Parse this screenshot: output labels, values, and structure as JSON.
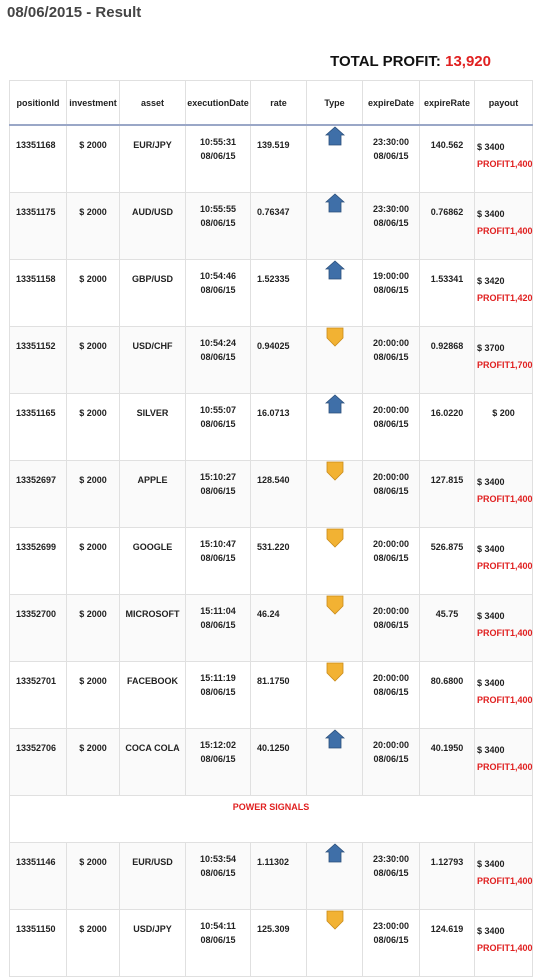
{
  "page": {
    "title": "08/06/2015 - Result",
    "total_label": "TOTAL PROFIT:",
    "total_value": "13,920"
  },
  "table": {
    "headers": [
      "positionId",
      "investment",
      "asset",
      "executionDate",
      "rate",
      "Type",
      "expireDate",
      "expireRate",
      "payout"
    ],
    "rows": [
      {
        "id": "13351168",
        "inv": "$ 2000",
        "asset": "EUR/JPY",
        "exec_time": "10:55:31",
        "exec_date": "08/06/15",
        "rate": "139.519",
        "type": "up",
        "exp_time": "23:30:00",
        "exp_date": "08/06/15",
        "exp_rate": "140.562",
        "payout": "$ 3400",
        "profit": "PROFIT1,400"
      },
      {
        "id": "13351175",
        "inv": "$ 2000",
        "asset": "AUD/USD",
        "exec_time": "10:55:55",
        "exec_date": "08/06/15",
        "rate": "0.76347",
        "type": "up",
        "exp_time": "23:30:00",
        "exp_date": "08/06/15",
        "exp_rate": "0.76862",
        "payout": "$ 3400",
        "profit": "PROFIT1,400"
      },
      {
        "id": "13351158",
        "inv": "$ 2000",
        "asset": "GBP/USD",
        "exec_time": "10:54:46",
        "exec_date": "08/06/15",
        "rate": "1.52335",
        "type": "up",
        "exp_time": "19:00:00",
        "exp_date": "08/06/15",
        "exp_rate": "1.53341",
        "payout": "$ 3420",
        "profit": "PROFIT1,420"
      },
      {
        "id": "13351152",
        "inv": "$ 2000",
        "asset": "USD/CHF",
        "exec_time": "10:54:24",
        "exec_date": "08/06/15",
        "rate": "0.94025",
        "type": "down",
        "exp_time": "20:00:00",
        "exp_date": "08/06/15",
        "exp_rate": "0.92868",
        "payout": "$ 3700",
        "profit": "PROFIT1,700"
      },
      {
        "id": "13351165",
        "inv": "$ 2000",
        "asset": "SILVER",
        "exec_time": "10:55:07",
        "exec_date": "08/06/15",
        "rate": "16.0713",
        "type": "up",
        "exp_time": "20:00:00",
        "exp_date": "08/06/15",
        "exp_rate": "16.0220",
        "payout": "$ 200",
        "profit": ""
      },
      {
        "id": "13352697",
        "inv": "$ 2000",
        "asset": "APPLE",
        "exec_time": "15:10:27",
        "exec_date": "08/06/15",
        "rate": "128.540",
        "type": "down",
        "exp_time": "20:00:00",
        "exp_date": "08/06/15",
        "exp_rate": "127.815",
        "payout": "$ 3400",
        "profit": "PROFIT1,400"
      },
      {
        "id": "13352699",
        "inv": "$ 2000",
        "asset": "GOOGLE",
        "exec_time": "15:10:47",
        "exec_date": "08/06/15",
        "rate": "531.220",
        "type": "down",
        "exp_time": "20:00:00",
        "exp_date": "08/06/15",
        "exp_rate": "526.875",
        "payout": "$ 3400",
        "profit": "PROFIT1,400"
      },
      {
        "id": "13352700",
        "inv": "$ 2000",
        "asset": "MICROSOFT",
        "exec_time": "15:11:04",
        "exec_date": "08/06/15",
        "rate": "46.24",
        "type": "down",
        "exp_time": "20:00:00",
        "exp_date": "08/06/15",
        "exp_rate": "45.75",
        "payout": "$ 3400",
        "profit": "PROFIT1,400"
      },
      {
        "id": "13352701",
        "inv": "$ 2000",
        "asset": "FACEBOOK",
        "exec_time": "15:11:19",
        "exec_date": "08/06/15",
        "rate": "81.1750",
        "type": "down",
        "exp_time": "20:00:00",
        "exp_date": "08/06/15",
        "exp_rate": "80.6800",
        "payout": "$ 3400",
        "profit": "PROFIT1,400"
      },
      {
        "id": "13352706",
        "inv": "$ 2000",
        "asset": "COCA COLA",
        "exec_time": "15:12:02",
        "exec_date": "08/06/15",
        "rate": "40.1250",
        "type": "up",
        "exp_time": "20:00:00",
        "exp_date": "08/06/15",
        "exp_rate": "40.1950",
        "payout": "$ 3400",
        "profit": "PROFIT1,400"
      }
    ],
    "section_label": "POWER SIGNALS",
    "rows2": [
      {
        "id": "13351146",
        "inv": "$ 2000",
        "asset": "EUR/USD",
        "exec_time": "10:53:54",
        "exec_date": "08/06/15",
        "rate": "1.11302",
        "type": "up",
        "exp_time": "23:30:00",
        "exp_date": "08/06/15",
        "exp_rate": "1.12793",
        "payout": "$ 3400",
        "profit": "PROFIT1,400"
      },
      {
        "id": "13351150",
        "inv": "$ 2000",
        "asset": "USD/JPY",
        "exec_time": "10:54:11",
        "exec_date": "08/06/15",
        "rate": "125.309",
        "type": "down",
        "exp_time": "23:00:00",
        "exp_date": "08/06/15",
        "exp_rate": "124.619",
        "payout": "$ 3400",
        "profit": "PROFIT1,400"
      }
    ]
  },
  "icons": {
    "up": "house-arrow-up-icon",
    "down": "arrow-down-icon",
    "up_color": "#3f6fa8",
    "down_color": "#f2b233"
  }
}
